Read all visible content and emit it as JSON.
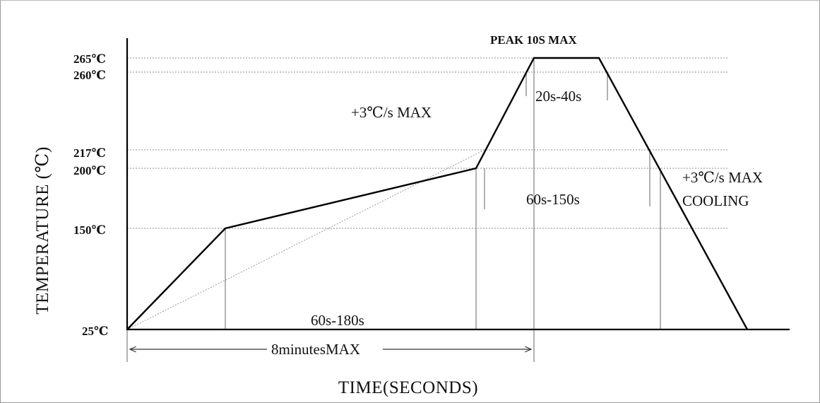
{
  "diagram": {
    "axes": {
      "y_title": "TEMPERATURE (℃)",
      "x_title": "TIME(SECONDS)"
    },
    "y_ticks": [
      {
        "label": "265℃",
        "value": 265
      },
      {
        "label": "260℃",
        "value": 260
      },
      {
        "label": "217℃",
        "value": 217
      },
      {
        "label": "200℃",
        "value": 200
      },
      {
        "label": "150℃",
        "value": 150
      },
      {
        "label": "25℃",
        "value": 25
      }
    ],
    "annotations": {
      "peak": "PEAK 10S MAX",
      "time_above_260": "20s-40s",
      "ramp_up": "+3℃/s MAX",
      "time_above_217": "60s-150s",
      "ramp_down": "+3℃/s MAX",
      "cooling": "COOLING",
      "preheat": "60s-180s",
      "total": "8minutesMAX"
    },
    "colors": {
      "profile": "#000000",
      "guides": "#8c8c8c",
      "text": "#111111"
    }
  }
}
